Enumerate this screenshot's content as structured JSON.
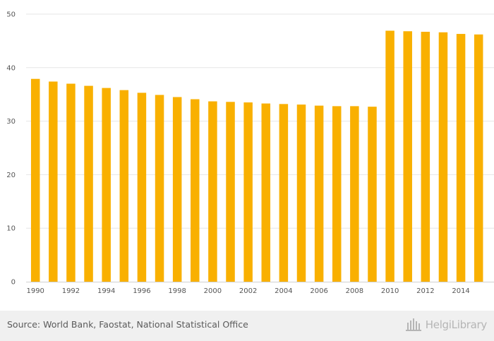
{
  "chart_data": {
    "type": "bar",
    "categories": [
      "1990",
      "1991",
      "1992",
      "1993",
      "1994",
      "1995",
      "1996",
      "1997",
      "1998",
      "1999",
      "2000",
      "2001",
      "2002",
      "2003",
      "2004",
      "2005",
      "2006",
      "2007",
      "2008",
      "2009",
      "2010",
      "2011",
      "2012",
      "2013",
      "2014",
      "2015"
    ],
    "x_tick_labels": [
      "1990",
      "1992",
      "1994",
      "1996",
      "1998",
      "2000",
      "2002",
      "2004",
      "2006",
      "2008",
      "2010",
      "2012",
      "2014"
    ],
    "values": [
      37.9,
      37.4,
      37.0,
      36.6,
      36.2,
      35.8,
      35.3,
      34.9,
      34.5,
      34.1,
      33.7,
      33.6,
      33.5,
      33.3,
      33.2,
      33.1,
      32.9,
      32.8,
      32.8,
      32.7,
      46.9,
      46.8,
      46.7,
      46.6,
      46.3,
      46.2
    ],
    "ylim": [
      0,
      50
    ],
    "y_ticks": [
      0,
      10,
      20,
      30,
      40,
      50
    ],
    "bar_color": "#f9b000",
    "grid": true,
    "title": "",
    "xlabel": "",
    "ylabel": ""
  },
  "footer": {
    "source_text": "Source: World Bank, Faostat, National Statistical Office",
    "brand_name": "HelgiLibrary",
    "brand_icon": "library-columns-icon"
  }
}
